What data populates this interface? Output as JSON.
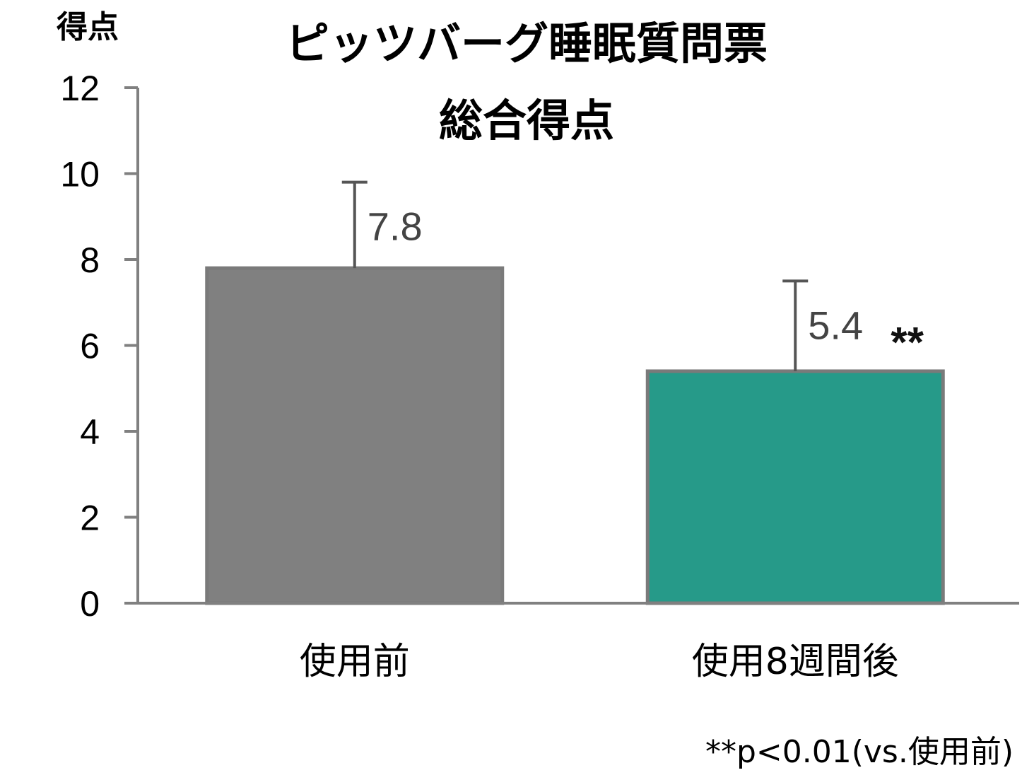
{
  "chart_data": {
    "type": "bar",
    "title": "ピッツバーグ睡眠質問票",
    "subtitle": "総合得点",
    "xlabel": "",
    "ylabel": "得点",
    "ylim": [
      0,
      12
    ],
    "yticks": [
      0,
      2,
      4,
      6,
      8,
      10,
      12
    ],
    "grid": false,
    "categories": [
      "使用前",
      "使用8週間後"
    ],
    "values": [
      7.8,
      5.4
    ],
    "error_upper": [
      9.8,
      7.5
    ],
    "value_labels": [
      "7.8",
      "5.4"
    ],
    "bar_colors": [
      "#808080",
      "#269A89"
    ],
    "bar_edge_color": "#7a7a7a",
    "axis_color": "#808080",
    "significance": [
      {
        "category_index": 1,
        "label": "**"
      }
    ],
    "footnote": "**p<0.01(vs.使用前)"
  }
}
